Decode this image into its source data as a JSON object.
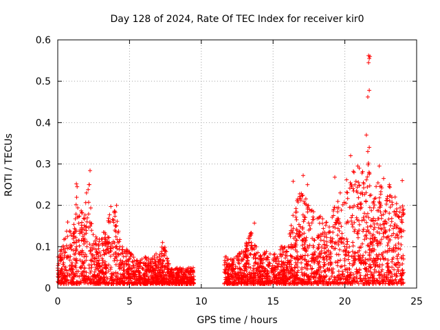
{
  "chart_data": {
    "type": "scatter",
    "title": "Day 128 of 2024, Rate Of TEC Index for receiver kir0",
    "xlabel": "GPS time / hours",
    "ylabel": "ROTI / TECUs",
    "xlim": [
      0,
      25
    ],
    "ylim": [
      0,
      0.6
    ],
    "xticks": [
      0,
      5,
      10,
      15,
      20,
      25
    ],
    "yticks": [
      0,
      0.1,
      0.2,
      0.3,
      0.4,
      0.5,
      0.6
    ],
    "grid": true,
    "marker": "+",
    "color": "#ff0000",
    "series": [
      {
        "name": "kir0",
        "segments": [
          [
            0,
            9.5
          ],
          [
            11.6,
            24.1
          ]
        ],
        "envelope": [
          [
            0.0,
            0.08
          ],
          [
            0.3,
            0.1
          ],
          [
            0.7,
            0.17
          ],
          [
            1.0,
            0.12
          ],
          [
            1.3,
            0.24
          ],
          [
            1.5,
            0.18
          ],
          [
            1.8,
            0.2
          ],
          [
            2.2,
            0.26
          ],
          [
            2.5,
            0.13
          ],
          [
            3.0,
            0.12
          ],
          [
            3.3,
            0.15
          ],
          [
            3.6,
            0.19
          ],
          [
            4.0,
            0.19
          ],
          [
            4.4,
            0.11
          ],
          [
            5.0,
            0.09
          ],
          [
            5.6,
            0.07
          ],
          [
            6.0,
            0.08
          ],
          [
            6.5,
            0.07
          ],
          [
            7.0,
            0.09
          ],
          [
            7.4,
            0.11
          ],
          [
            7.8,
            0.05
          ],
          [
            8.5,
            0.05
          ],
          [
            9.5,
            0.05
          ],
          [
            11.6,
            0.08
          ],
          [
            12.0,
            0.07
          ],
          [
            12.5,
            0.08
          ],
          [
            13.0,
            0.1
          ],
          [
            13.5,
            0.14
          ],
          [
            14.0,
            0.08
          ],
          [
            14.5,
            0.09
          ],
          [
            15.0,
            0.08
          ],
          [
            15.5,
            0.1
          ],
          [
            16.0,
            0.1
          ],
          [
            16.5,
            0.2
          ],
          [
            17.0,
            0.25
          ],
          [
            17.5,
            0.2
          ],
          [
            18.0,
            0.18
          ],
          [
            18.5,
            0.17
          ],
          [
            19.0,
            0.2
          ],
          [
            19.5,
            0.23
          ],
          [
            20.0,
            0.25
          ],
          [
            20.5,
            0.3
          ],
          [
            21.0,
            0.25
          ],
          [
            21.3,
            0.3
          ],
          [
            21.6,
            0.37
          ],
          [
            21.9,
            0.2
          ],
          [
            22.4,
            0.29
          ],
          [
            22.8,
            0.2
          ],
          [
            23.1,
            0.25
          ],
          [
            23.5,
            0.21
          ],
          [
            24.0,
            0.2
          ]
        ],
        "peaks": [
          [
            2.25,
            0.284
          ],
          [
            2.2,
            0.25
          ],
          [
            1.3,
            0.252
          ],
          [
            1.35,
            0.245
          ],
          [
            3.7,
            0.197
          ],
          [
            4.1,
            0.2
          ],
          [
            7.3,
            0.11
          ],
          [
            13.7,
            0.157
          ],
          [
            16.4,
            0.258
          ],
          [
            17.1,
            0.272
          ],
          [
            17.4,
            0.25
          ],
          [
            19.3,
            0.268
          ],
          [
            20.4,
            0.32
          ],
          [
            20.9,
            0.295
          ],
          [
            21.0,
            0.29
          ],
          [
            21.5,
            0.37
          ],
          [
            21.6,
            0.462
          ],
          [
            21.7,
            0.478
          ],
          [
            21.65,
            0.545
          ],
          [
            21.7,
            0.555
          ],
          [
            21.65,
            0.562
          ],
          [
            21.75,
            0.56
          ],
          [
            21.6,
            0.33
          ],
          [
            21.7,
            0.34
          ],
          [
            22.4,
            0.295
          ],
          [
            22.7,
            0.265
          ],
          [
            23.1,
            0.25
          ],
          [
            23.5,
            0.22
          ],
          [
            24.0,
            0.26
          ]
        ]
      }
    ]
  }
}
